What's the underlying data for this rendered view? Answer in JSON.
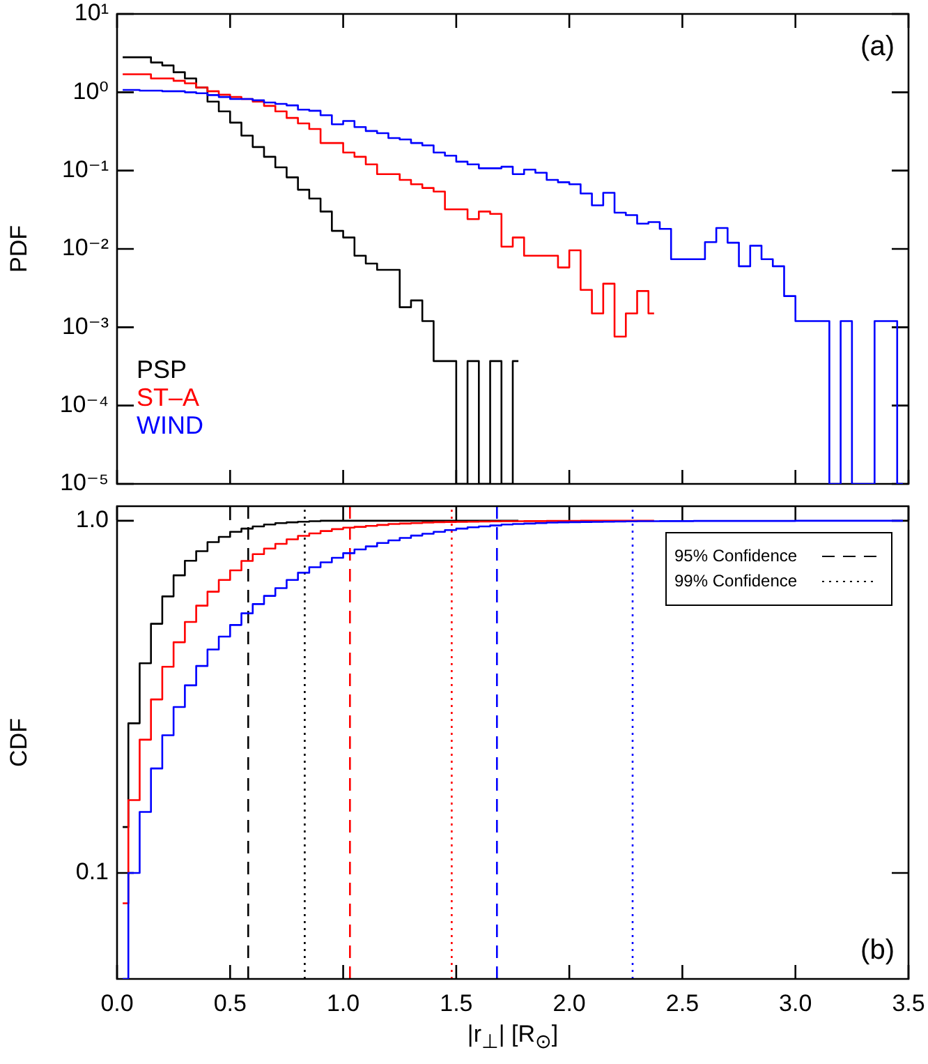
{
  "chart_data": [
    {
      "type": "step",
      "ylabel": "PDF",
      "log": "y",
      "xlim": [
        0,
        3.5
      ],
      "ylim": [
        1e-05,
        10
      ],
      "xticks": [
        0,
        0.5,
        1,
        1.5,
        2,
        2.5,
        3,
        3.5
      ],
      "yticks": [
        {
          "value": 1e-05,
          "label": "10⁻⁵"
        },
        {
          "value": 0.0001,
          "label": "10⁻⁴"
        },
        {
          "value": 0.001,
          "label": "10⁻³"
        },
        {
          "value": 0.01,
          "label": "10⁻²"
        },
        {
          "value": 0.1,
          "label": "10⁻¹"
        },
        {
          "value": 1,
          "label": "10⁰"
        },
        {
          "value": 10,
          "label": "10¹"
        }
      ],
      "tick_labels": "y",
      "legend": "bottom left",
      "annotations": [
        "(a)"
      ],
      "x": [
        0.025,
        0.075,
        0.125,
        0.175,
        0.225,
        0.275,
        0.325,
        0.375,
        0.425,
        0.475,
        0.525,
        0.575,
        0.625,
        0.675,
        0.725,
        0.775,
        0.825,
        0.875,
        0.925,
        0.975,
        1.025,
        1.075,
        1.125,
        1.175,
        1.225,
        1.275,
        1.325,
        1.375,
        1.425,
        1.475,
        1.525,
        1.575,
        1.625,
        1.675,
        1.725,
        1.775,
        1.825,
        1.875,
        1.925,
        1.975,
        2.025,
        2.075,
        2.125,
        2.175,
        2.225,
        2.275,
        2.325,
        2.375,
        2.425,
        2.475,
        2.525,
        2.575,
        2.625,
        2.675,
        2.725,
        2.775,
        2.825,
        2.875,
        2.925,
        2.975,
        3.025,
        3.075,
        3.125,
        3.175,
        3.225,
        3.275,
        3.325,
        3.375,
        3.425,
        3.475
      ],
      "series": [
        {
          "name": "PSP",
          "color": "#000000",
          "values": [
            2.8,
            2.8,
            2.8,
            2.4,
            2.2,
            1.8,
            1.5,
            1.15,
            0.76,
            0.57,
            0.41,
            0.28,
            0.2,
            0.15,
            0.11,
            0.082,
            0.057,
            0.044,
            0.03,
            0.017,
            0.014,
            0.0082,
            0.0065,
            0.0054,
            0.0054,
            0.0018,
            0.0022,
            0.0012,
            0.00037,
            0.00037,
            1e-05,
            0.00037,
            1e-05,
            0.00037,
            1e-05,
            0.00037,
            null,
            null,
            null,
            null,
            null,
            null,
            null,
            null,
            null,
            null,
            null,
            null,
            null,
            null,
            null,
            null,
            null,
            null,
            null,
            null,
            null,
            null,
            null,
            null,
            null,
            null,
            null,
            null,
            null,
            null,
            null,
            null,
            null,
            null
          ]
        },
        {
          "name": "ST–A",
          "color": "#ff0000",
          "values": [
            1.7,
            1.7,
            1.7,
            1.5,
            1.5,
            1.4,
            1.3,
            1.15,
            1.03,
            0.93,
            0.87,
            0.82,
            0.76,
            0.67,
            0.57,
            0.47,
            0.4,
            0.34,
            0.225,
            0.225,
            0.17,
            0.15,
            0.12,
            0.09,
            0.09,
            0.076,
            0.067,
            0.06,
            0.054,
            0.032,
            0.032,
            0.024,
            0.03,
            0.028,
            0.0107,
            0.014,
            0.0082,
            0.0082,
            0.0082,
            0.0058,
            0.0096,
            0.003,
            0.0015,
            0.0036,
            0.00076,
            0.0015,
            0.0029,
            0.0015,
            null,
            null,
            null,
            null,
            null,
            null,
            null,
            null,
            null,
            null,
            null,
            null,
            null,
            null,
            null,
            null,
            null,
            null,
            null,
            null,
            null,
            null
          ]
        },
        {
          "name": "WIND",
          "color": "#0000ff",
          "values": [
            1.07,
            1.07,
            1.05,
            1.05,
            1.03,
            1.03,
            1.0,
            0.97,
            0.92,
            0.87,
            0.82,
            0.82,
            0.79,
            0.74,
            0.71,
            0.68,
            0.6,
            0.58,
            0.51,
            0.39,
            0.43,
            0.36,
            0.32,
            0.3,
            0.26,
            0.25,
            0.225,
            0.21,
            0.17,
            0.155,
            0.13,
            0.12,
            0.107,
            0.107,
            0.112,
            0.09,
            0.103,
            0.094,
            0.076,
            0.071,
            0.067,
            0.051,
            0.036,
            0.052,
            0.029,
            0.027,
            0.021,
            0.022,
            0.018,
            0.0074,
            0.0074,
            0.0074,
            0.0122,
            0.0185,
            0.012,
            0.006,
            0.011,
            0.0074,
            0.006,
            0.0025,
            0.0012,
            0.0012,
            0.0012,
            1e-05,
            0.0012,
            1e-05,
            1e-05,
            0.0012,
            0.0012,
            1e-05
          ]
        }
      ]
    },
    {
      "type": "step",
      "ylabel": "CDF",
      "xlabel": "|r$_{⊥}$| [R$_{⊙}$]",
      "log": "y",
      "xlim": [
        0,
        3.5
      ],
      "ylim": [
        0.05,
        1.1
      ],
      "xticks": [
        {
          "value": 0,
          "label": "0.0"
        },
        0.5,
        {
          "value": 1,
          "label": "1.0"
        },
        1.5,
        {
          "value": 2,
          "label": "2.0"
        },
        2.5,
        {
          "value": 3,
          "label": "3.0"
        },
        3.5
      ],
      "yticks": [
        0.1,
        {
          "value": 1,
          "label": "1.0"
        }
      ],
      "annotations": [
        "95% Confidence",
        "99% Confidence",
        "(b)"
      ],
      "ref_lines": [
        {
          "axis": "x",
          "value": 0.58,
          "color": "#000000",
          "line_style": "dashed"
        },
        {
          "axis": "x",
          "value": 0.83,
          "color": "#000000",
          "line_style": "dotted"
        },
        {
          "axis": "x",
          "value": 1.03,
          "color": "#ff0000",
          "line_style": "dashed"
        },
        {
          "axis": "x",
          "value": 1.48,
          "color": "#ff0000",
          "line_style": "dotted"
        },
        {
          "axis": "x",
          "value": 1.68,
          "color": "#0000ff",
          "line_style": "dashed"
        },
        {
          "axis": "x",
          "value": 2.28,
          "color": "#0000ff",
          "line_style": "dotted"
        }
      ],
      "x": [
        0.025,
        0.075,
        0.125,
        0.175,
        0.225,
        0.275,
        0.325,
        0.375,
        0.425,
        0.475,
        0.525,
        0.575,
        0.625,
        0.675,
        0.725,
        0.775,
        0.825,
        0.875,
        0.925,
        0.975,
        1.025,
        1.075,
        1.125,
        1.175,
        1.225,
        1.275,
        1.325,
        1.375,
        1.425,
        1.475,
        1.525,
        1.575,
        1.625,
        1.675,
        1.725,
        1.775,
        1.825,
        1.875,
        1.925,
        1.975,
        2.025,
        2.075,
        2.125,
        2.175,
        2.225,
        2.275,
        2.325,
        2.375,
        2.425,
        2.475,
        2.525,
        2.575,
        2.625,
        2.675,
        2.725,
        2.775,
        2.825,
        2.875,
        2.925,
        2.975,
        3.025,
        3.075,
        3.125,
        3.175,
        3.225,
        3.275,
        3.325,
        3.375,
        3.425,
        3.475
      ],
      "series": [
        {
          "color": "#000000",
          "values": [
            0.135,
            0.266,
            0.394,
            0.51,
            0.61,
            0.7,
            0.77,
            0.82,
            0.87,
            0.9,
            0.93,
            0.95,
            0.964,
            0.976,
            0.985,
            0.99,
            0.994,
            0.997,
            1,
            1,
            1,
            1,
            1,
            1,
            1,
            1,
            1,
            1,
            1,
            1,
            1,
            1,
            1,
            1,
            1,
            1,
            null,
            null,
            null,
            null,
            null,
            null,
            null,
            null,
            null,
            null,
            null,
            null,
            null,
            null,
            null,
            null,
            null,
            null,
            null,
            null,
            null,
            null,
            null,
            null,
            null,
            null,
            null,
            null,
            null,
            null,
            null,
            null,
            null,
            null
          ]
        },
        {
          "color": "#ff0000",
          "values": [
            0.082,
            0.161,
            0.239,
            0.311,
            0.385,
            0.452,
            0.516,
            0.574,
            0.629,
            0.679,
            0.723,
            0.769,
            0.804,
            0.834,
            0.86,
            0.886,
            0.906,
            0.921,
            0.935,
            0.947,
            0.956,
            0.961,
            0.967,
            0.973,
            0.979,
            0.982,
            0.985,
            0.988,
            0.991,
            0.992,
            0.993,
            0.994,
            0.995,
            0.996,
            0.997,
            0.997,
            0.998,
            0.998,
            0.999,
            0.999,
            0.999,
            1,
            1,
            1,
            1,
            1,
            1,
            1,
            null,
            null,
            null,
            null,
            null,
            null,
            null,
            null,
            null,
            null,
            null,
            null,
            null,
            null,
            null,
            null,
            null,
            null,
            null,
            null,
            null,
            null
          ]
        },
        {
          "color": "#0000ff",
          "values": [
            0.05,
            0.1,
            0.149,
            0.198,
            0.246,
            0.296,
            0.341,
            0.387,
            0.431,
            0.469,
            0.506,
            0.546,
            0.58,
            0.612,
            0.644,
            0.679,
            0.712,
            0.738,
            0.762,
            0.785,
            0.809,
            0.829,
            0.846,
            0.865,
            0.88,
            0.894,
            0.908,
            0.919,
            0.93,
            0.941,
            0.95,
            0.958,
            0.964,
            0.97,
            0.976,
            0.979,
            0.982,
            0.985,
            0.988,
            0.99,
            0.991,
            0.992,
            0.993,
            0.994,
            0.995,
            0.996,
            0.997,
            0.997,
            0.998,
            0.998,
            0.998,
            0.999,
            0.999,
            0.999,
            0.999,
            0.999,
            0.999,
            0.999,
            0.999,
            0.999,
            1,
            1,
            1,
            1,
            1,
            1,
            1,
            1,
            1,
            1
          ]
        }
      ]
    }
  ]
}
